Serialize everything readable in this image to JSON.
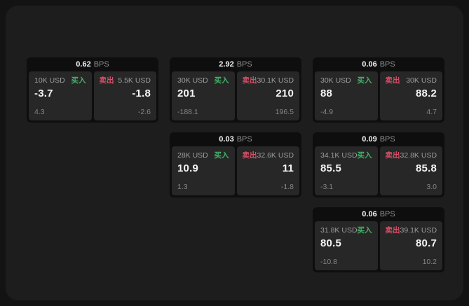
{
  "colors": {
    "page_bg": "#131313",
    "surface_bg": "#1d1d1d",
    "card_bg": "#0e0e0e",
    "tile_bg": "#272727",
    "buy_green": "#42b566",
    "sell_red": "#d64f67"
  },
  "labels": {
    "buy": "买入",
    "sell": "卖出",
    "bps": "BPS"
  },
  "cards": [
    {
      "bps": "0.62",
      "buy": {
        "amount": "10K USD",
        "price": "-3.7",
        "delta": "4.3"
      },
      "sell": {
        "amount": "5.5K USD",
        "price": "-1.8",
        "delta": "-2.6"
      }
    },
    {
      "bps": "2.92",
      "buy": {
        "amount": "30K USD",
        "price": "201",
        "delta": "-188.1"
      },
      "sell": {
        "amount": "30.1K USD",
        "price": "210",
        "delta": "196.5"
      }
    },
    {
      "bps": "0.06",
      "buy": {
        "amount": "30K USD",
        "price": "88",
        "delta": "-4.9"
      },
      "sell": {
        "amount": "30K USD",
        "price": "88.2",
        "delta": "4.7"
      }
    },
    {
      "bps": "0.03",
      "buy": {
        "amount": "28K USD",
        "price": "10.9",
        "delta": "1.3"
      },
      "sell": {
        "amount": "32.6K USD",
        "price": "11",
        "delta": "-1.8"
      }
    },
    {
      "bps": "0.09",
      "buy": {
        "amount": "34.1K USD",
        "price": "85.5",
        "delta": "-3.1"
      },
      "sell": {
        "amount": "32.8K USD",
        "price": "85.8",
        "delta": "3.0"
      }
    },
    {
      "bps": "0.06",
      "buy": {
        "amount": "31.8K USD",
        "price": "80.5",
        "delta": "-10.8"
      },
      "sell": {
        "amount": "39.1K USD",
        "price": "80.7",
        "delta": "10.2"
      }
    }
  ]
}
